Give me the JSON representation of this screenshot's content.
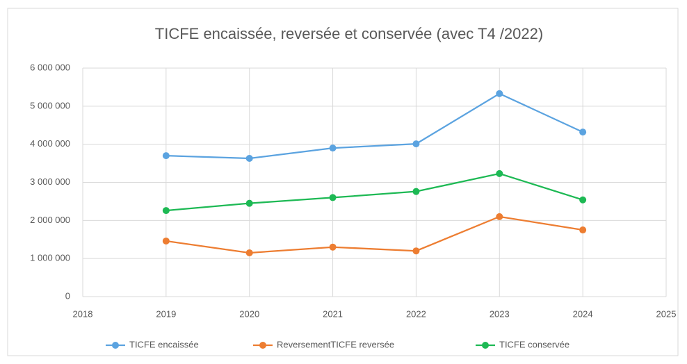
{
  "chart_data": {
    "type": "line",
    "title": "TICFE encaissée, reversée et conservée (avec T4 /2022)",
    "x": [
      2019,
      2020,
      2021,
      2022,
      2023,
      2024
    ],
    "series": [
      {
        "name": "TICFE encaissée",
        "color": "#5ba3e0",
        "values": [
          3700000,
          3630000,
          3900000,
          4010000,
          5330000,
          4320000
        ]
      },
      {
        "name": "ReversementTICFE reversée",
        "color": "#ed7d31",
        "values": [
          1460000,
          1150000,
          1300000,
          1200000,
          2100000,
          1750000
        ]
      },
      {
        "name": "TICFE conservée",
        "color": "#1db954",
        "values": [
          2260000,
          2450000,
          2600000,
          2760000,
          3230000,
          2540000
        ]
      }
    ],
    "xlim": [
      2018,
      2025
    ],
    "xticks": [
      2018,
      2019,
      2020,
      2021,
      2022,
      2023,
      2024,
      2025
    ],
    "ylim": [
      0,
      6000000
    ],
    "yticks": [
      0,
      {
        "value": 1000000,
        "label": "1 000 000"
      },
      {
        "value": 2000000,
        "label": "2 000 000"
      },
      {
        "value": 3000000,
        "label": "3 000 000"
      },
      {
        "value": 4000000,
        "label": "4 000 000"
      },
      {
        "value": 5000000,
        "label": "5 000 000"
      },
      {
        "value": 6000000,
        "label": "6 000 000"
      }
    ],
    "grid": true,
    "legend": "bottom"
  }
}
